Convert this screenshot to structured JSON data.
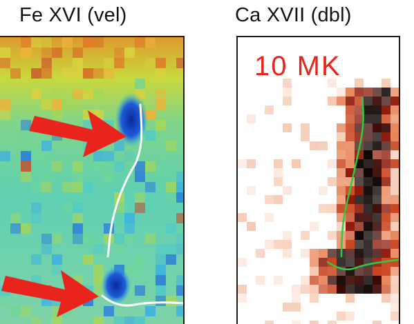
{
  "panels": [
    {
      "title": "Fe XVI (vel)"
    },
    {
      "title": "Ca XVII (dbl)",
      "label": "10 MK"
    }
  ],
  "colors": {
    "arrow": "#e8241c",
    "label": "#e8241c",
    "trace_panel1": "#ffffff",
    "trace_panel2": "#2ecc40"
  },
  "icons": [
    "red-arrow",
    "red-arrow"
  ]
}
